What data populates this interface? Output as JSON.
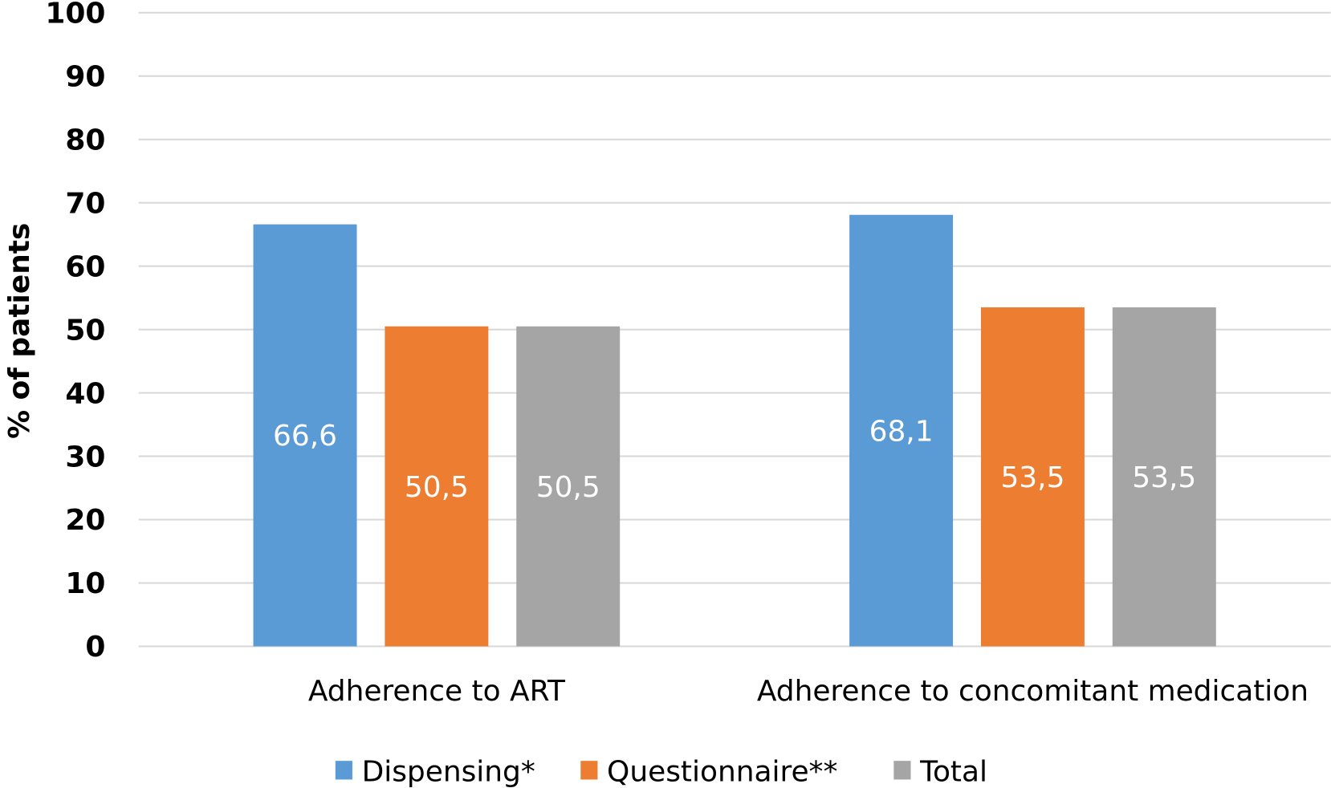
{
  "chart_data": {
    "type": "bar",
    "categories": [
      "Adherence to ART",
      "Adherence to concomitant medication"
    ],
    "series": [
      {
        "name": "Dispensing*",
        "values": [
          66.6,
          68.1
        ],
        "labels": [
          "66,6",
          "68,1"
        ],
        "color": "#5B9BD5"
      },
      {
        "name": "Questionnaire**",
        "values": [
          50.5,
          53.5
        ],
        "labels": [
          "50,5",
          "53,5"
        ],
        "color": "#ED7D31"
      },
      {
        "name": "Total",
        "values": [
          50.5,
          53.5
        ],
        "labels": [
          "50,5",
          "53,5"
        ],
        "color": "#A5A5A5"
      }
    ],
    "xlabel": "",
    "ylabel": "% of patients",
    "ylim": [
      0,
      100
    ],
    "yticks": [
      "0",
      "10",
      "20",
      "30",
      "40",
      "50",
      "60",
      "70",
      "80",
      "90",
      "100"
    ],
    "grid": true,
    "legend": "bottom"
  }
}
